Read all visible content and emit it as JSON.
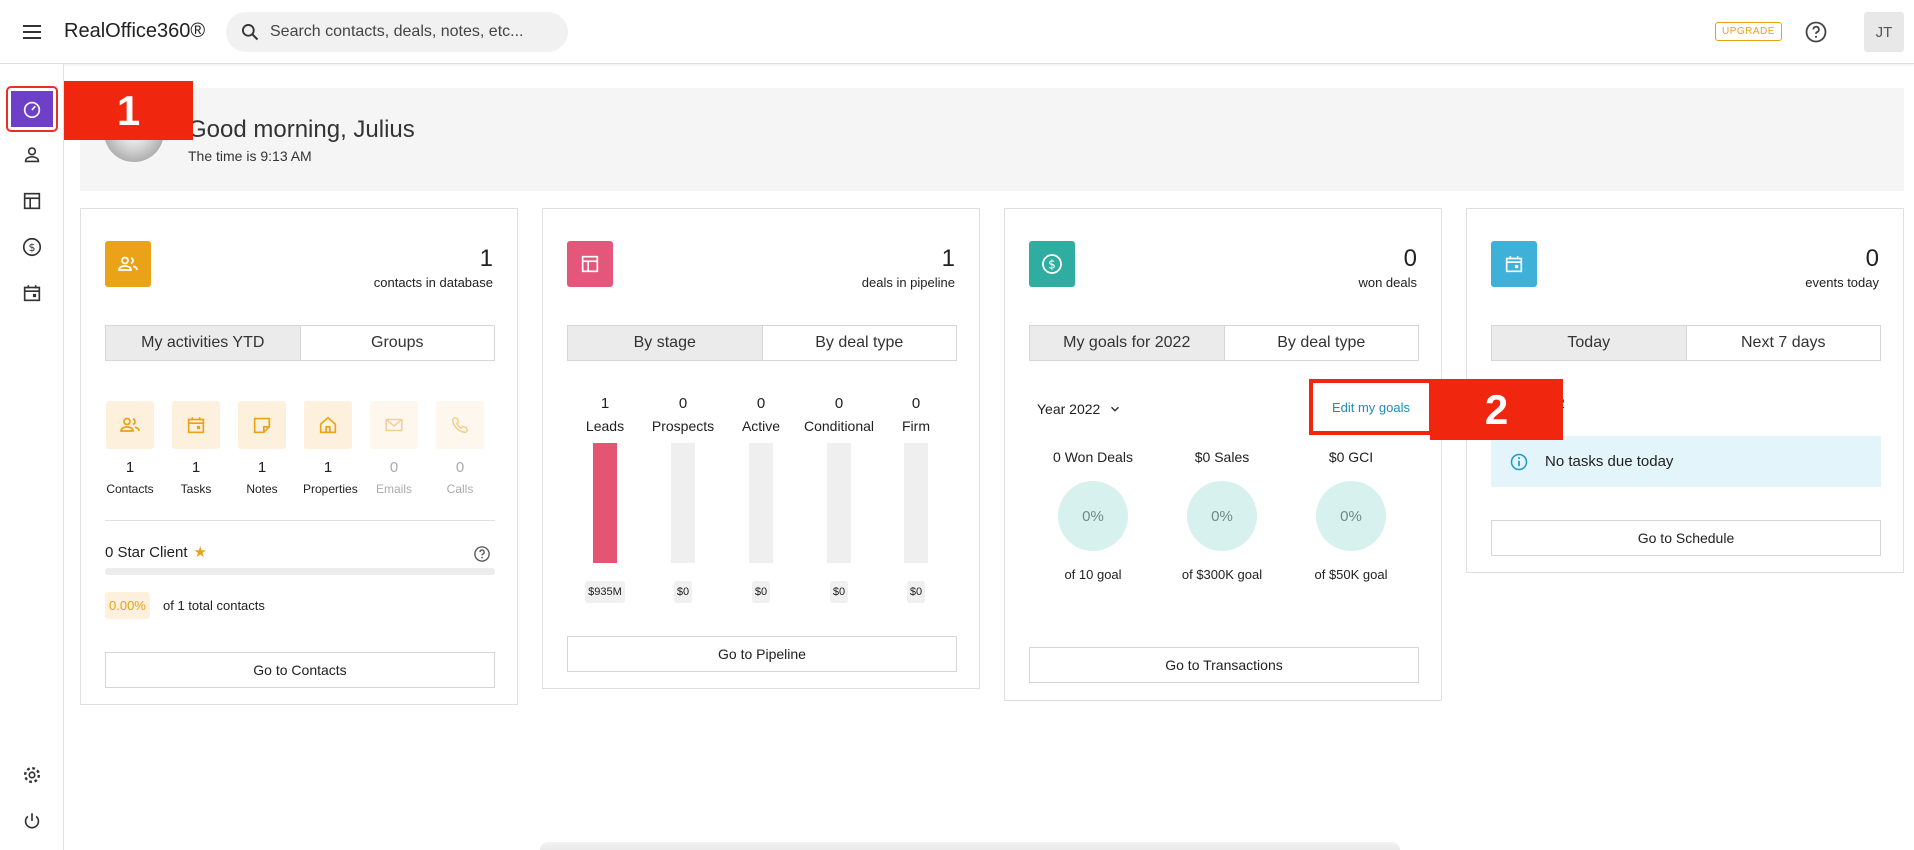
{
  "app": {
    "title": "RealOffice360®"
  },
  "search": {
    "placeholder": "Search contacts, deals, notes, etc..."
  },
  "header": {
    "upgrade_label": "UPGRADE",
    "avatar_initials": "JT"
  },
  "callouts": {
    "one": "1",
    "two": "2"
  },
  "greeting": {
    "title": "Good morning, Julius",
    "time": "The time is 9:13 AM"
  },
  "contacts_card": {
    "count": "1",
    "subtitle": "contacts in database",
    "tabs": [
      "My activities YTD",
      "Groups"
    ],
    "activities": [
      {
        "count": "1",
        "label": "Contacts",
        "icon": "people-icon"
      },
      {
        "count": "1",
        "label": "Tasks",
        "icon": "calendar-icon"
      },
      {
        "count": "1",
        "label": "Notes",
        "icon": "note-icon"
      },
      {
        "count": "1",
        "label": "Properties",
        "icon": "house-icon"
      },
      {
        "count": "0",
        "label": "Emails",
        "icon": "mail-icon"
      },
      {
        "count": "0",
        "label": "Calls",
        "icon": "phone-icon"
      }
    ],
    "star_label": "0 Star Client",
    "star_percent": "0.00%",
    "star_total": "of 1 total contacts",
    "button": "Go to Contacts"
  },
  "deals_card": {
    "count": "1",
    "subtitle": "deals in pipeline",
    "tabs": [
      "By stage",
      "By deal type"
    ],
    "stages": [
      {
        "count": "1",
        "label": "Leads",
        "value": "$935M",
        "fill": 1.0
      },
      {
        "count": "0",
        "label": "Prospects",
        "value": "$0",
        "fill": 0
      },
      {
        "count": "0",
        "label": "Active",
        "value": "$0",
        "fill": 0
      },
      {
        "count": "0",
        "label": "Conditional",
        "value": "$0",
        "fill": 0
      },
      {
        "count": "0",
        "label": "Firm",
        "value": "$0",
        "fill": 0
      }
    ],
    "button": "Go to Pipeline"
  },
  "goals_card": {
    "count": "0",
    "subtitle": "won deals",
    "tabs": [
      "My goals for 2022",
      "By deal type"
    ],
    "year_label": "Year 2022",
    "edit_label": "Edit my goals",
    "goals": [
      {
        "heading": "0 Won Deals",
        "percent": "0%",
        "footer": "of 10 goal"
      },
      {
        "heading": "$0 Sales",
        "percent": "0%",
        "footer": "of $300K goal"
      },
      {
        "heading": "$0 GCI",
        "percent": "0%",
        "footer": "of $50K goal"
      }
    ],
    "button": "Go to Transactions"
  },
  "events_card": {
    "count": "0",
    "subtitle": "events today",
    "tabs": [
      "Today",
      "Next 7 days"
    ],
    "partial_text": "2",
    "info_text": "No tasks due today",
    "button": "Go to Schedule"
  },
  "colors": {
    "accent_purple": "#6e3fc9",
    "contacts": "#eaa218",
    "deals": "#e4577a",
    "goals": "#2fada0",
    "events": "#3fb1d8",
    "callout": "#f0260f"
  }
}
